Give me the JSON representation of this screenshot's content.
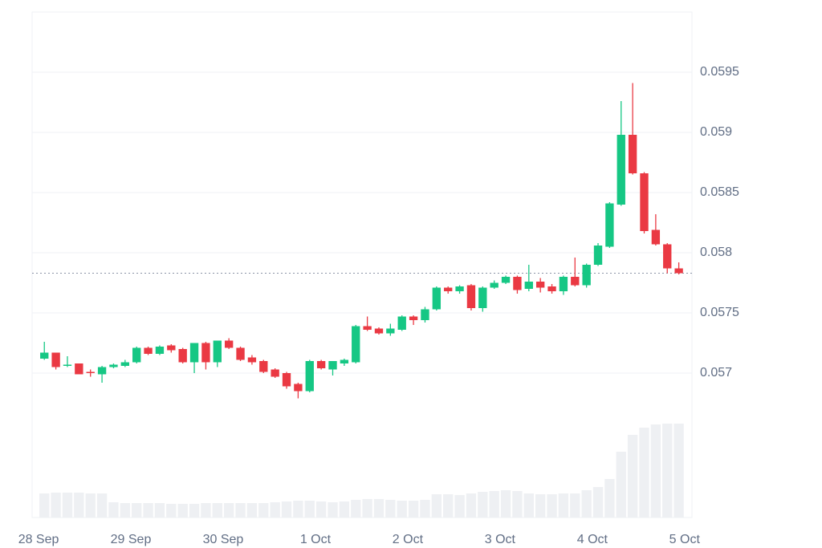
{
  "chart_data": {
    "type": "candlestick",
    "x": [
      0.0625,
      0.1875,
      0.3125,
      0.4375,
      0.5625,
      0.6875,
      0.8125,
      0.9375,
      1.0625,
      1.1875,
      1.3125,
      1.4375,
      1.5625,
      1.6875,
      1.8125,
      1.9375,
      2.0625,
      2.1875,
      2.3125,
      2.4375,
      2.5625,
      2.6875,
      2.8125,
      2.9375,
      3.0625,
      3.1875,
      3.3125,
      3.4375,
      3.5625,
      3.6875,
      3.8125,
      3.9375,
      4.0625,
      4.1875,
      4.3125,
      4.4375,
      4.5625,
      4.6875,
      4.8125,
      4.9375,
      5.0625,
      5.1875,
      5.3125,
      5.4375,
      5.5625,
      5.6875,
      5.8125,
      5.9375,
      6.0625,
      6.1875,
      6.3125,
      6.4375,
      6.5625,
      6.6875,
      6.8125,
      6.9375
    ],
    "open": [
      0.05712,
      0.05717,
      0.05706,
      0.05708,
      0.05701,
      0.05699,
      0.05705,
      0.05706,
      0.05709,
      0.05721,
      0.05716,
      0.05723,
      0.0572,
      0.05709,
      0.05725,
      0.05709,
      0.05727,
      0.05721,
      0.05713,
      0.0571,
      0.05703,
      0.057,
      0.05691,
      0.05685,
      0.0571,
      0.05703,
      0.05708,
      0.05709,
      0.05739,
      0.05737,
      0.05733,
      0.05736,
      0.05747,
      0.05744,
      0.05753,
      0.05771,
      0.05768,
      0.05773,
      0.05754,
      0.05771,
      0.05775,
      0.0578,
      0.0577,
      0.05776,
      0.05772,
      0.05768,
      0.0578,
      0.05773,
      0.0579,
      0.05805,
      0.0584,
      0.05898,
      0.05866,
      0.05819,
      0.05807,
      0.05787
    ],
    "high": [
      0.05726,
      0.05717,
      0.05714,
      0.05708,
      0.05703,
      0.05706,
      0.05708,
      0.05711,
      0.05722,
      0.05722,
      0.05723,
      0.05724,
      0.05721,
      0.05725,
      0.05726,
      0.05727,
      0.05729,
      0.05722,
      0.05715,
      0.05711,
      0.05704,
      0.05701,
      0.05692,
      0.05711,
      0.05711,
      0.0571,
      0.05712,
      0.0574,
      0.05747,
      0.05738,
      0.05741,
      0.05748,
      0.05748,
      0.05755,
      0.05772,
      0.05772,
      0.05773,
      0.05774,
      0.05772,
      0.05777,
      0.05781,
      0.05781,
      0.0579,
      0.05779,
      0.05774,
      0.05781,
      0.05796,
      0.05791,
      0.05808,
      0.05842,
      0.05926,
      0.05941,
      0.05867,
      0.05832,
      0.05808,
      0.05792
    ],
    "low": [
      0.05711,
      0.05703,
      0.05705,
      0.05699,
      0.05697,
      0.05692,
      0.05704,
      0.05705,
      0.05708,
      0.05715,
      0.05715,
      0.05717,
      0.05708,
      0.057,
      0.05703,
      0.05705,
      0.0572,
      0.0571,
      0.05707,
      0.057,
      0.05696,
      0.05687,
      0.05679,
      0.05684,
      0.05703,
      0.05698,
      0.05706,
      0.05708,
      0.05735,
      0.05732,
      0.05731,
      0.05735,
      0.0574,
      0.05742,
      0.05752,
      0.05766,
      0.05766,
      0.05752,
      0.05751,
      0.0577,
      0.05774,
      0.05766,
      0.05768,
      0.05767,
      0.05766,
      0.05765,
      0.05772,
      0.05771,
      0.05789,
      0.05804,
      0.05839,
      0.05865,
      0.05816,
      0.05806,
      0.05783,
      0.05782
    ],
    "close": [
      0.05717,
      0.05705,
      0.05707,
      0.05699,
      0.057,
      0.05705,
      0.05707,
      0.05709,
      0.05721,
      0.05716,
      0.05722,
      0.05719,
      0.05709,
      0.05725,
      0.05709,
      0.05727,
      0.05721,
      0.05711,
      0.05709,
      0.05701,
      0.05697,
      0.05689,
      0.05685,
      0.0571,
      0.05704,
      0.0571,
      0.05711,
      0.05739,
      0.05736,
      0.05733,
      0.05737,
      0.05747,
      0.05744,
      0.05753,
      0.05771,
      0.05768,
      0.05772,
      0.05754,
      0.05771,
      0.05775,
      0.0578,
      0.05769,
      0.05776,
      0.05771,
      0.05768,
      0.0578,
      0.05773,
      0.0579,
      0.05806,
      0.05841,
      0.05898,
      0.05866,
      0.05818,
      0.05807,
      0.05787,
      0.05783
    ],
    "volume": [
      30,
      31,
      31,
      31,
      30,
      30,
      19,
      18,
      18,
      18,
      18,
      17,
      17,
      17,
      18,
      18,
      18,
      18,
      18,
      18,
      19,
      20,
      21,
      21,
      20,
      19,
      20,
      22,
      23,
      23,
      22,
      21,
      21,
      22,
      29,
      29,
      28,
      30,
      32,
      33,
      34,
      33,
      30,
      29,
      29,
      30,
      30,
      34,
      38,
      48,
      82,
      103,
      112,
      116,
      117,
      117
    ],
    "volume_lim": [
      0,
      130
    ],
    "up_color": "#16c784",
    "down_color": "#ea3943",
    "volume_color": "#eef0f3",
    "xlim": [
      -0.07,
      7.08
    ],
    "xticks": [
      {
        "value": 0,
        "label": "28 Sep"
      },
      {
        "value": 1,
        "label": "29 Sep"
      },
      {
        "value": 2,
        "label": "30 Sep"
      },
      {
        "value": 3,
        "label": "1 Oct"
      },
      {
        "value": 4,
        "label": "2 Oct"
      },
      {
        "value": 5,
        "label": "3 Oct"
      },
      {
        "value": 6,
        "label": "4 Oct"
      },
      {
        "value": 7,
        "label": "5 Oct"
      }
    ],
    "ylim": [
      0.0558,
      0.06
    ],
    "yticks": [
      0.057,
      0.0575,
      0.058,
      0.0585,
      0.059,
      0.0595
    ],
    "grid": true
  }
}
